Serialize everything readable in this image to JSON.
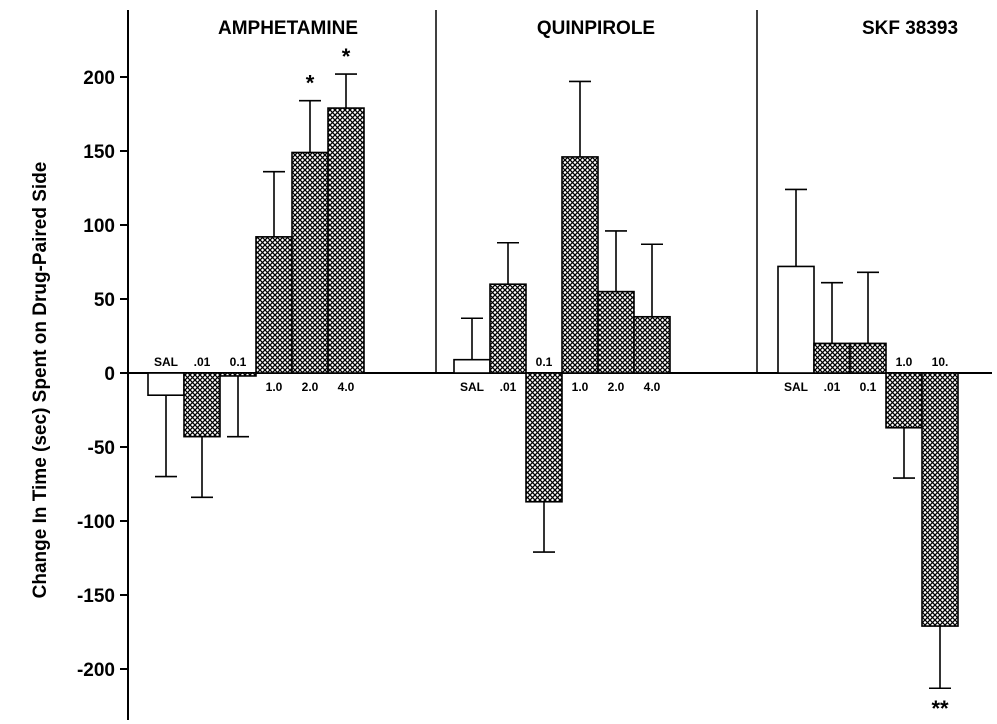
{
  "chart_data": {
    "type": "bar",
    "ylabel": "Change In Time (sec) Spent on Drug-Paired Side",
    "ylim": [
      -250,
      240
    ],
    "yticks": [
      200,
      150,
      100,
      50,
      0,
      -50,
      -100,
      -150,
      -200
    ],
    "ytick_labels": [
      "200",
      "150",
      "100",
      "50",
      "0",
      "-50",
      "-100",
      "-150",
      "-200"
    ],
    "grid": false,
    "legend": "none",
    "colors": {
      "saline": "#ffffff",
      "drug": "#8c8c8c",
      "ink": "#000000"
    },
    "panels": [
      {
        "title": "AMPHETAMINE",
        "categories": [
          "SAL",
          ".01",
          "0.1",
          "1.0",
          "2.0",
          "4.0"
        ],
        "values": [
          -15,
          -43,
          -2,
          92,
          149,
          179
        ],
        "errors": [
          55,
          41,
          41,
          44,
          35,
          23
        ],
        "significance": [
          "",
          "",
          "",
          "",
          "*",
          "*"
        ]
      },
      {
        "title": "QUINPIROLE",
        "categories": [
          "SAL",
          ".01",
          "0.1",
          "1.0",
          "2.0",
          "4.0"
        ],
        "values": [
          9,
          60,
          -87,
          146,
          55,
          38
        ],
        "errors": [
          28,
          28,
          34,
          51,
          41,
          49
        ],
        "significance": [
          "",
          "",
          "",
          "",
          "",
          ""
        ]
      },
      {
        "title": "SKF 38393",
        "categories": [
          "SAL",
          ".01",
          "0.1",
          "1.0",
          "10."
        ],
        "values": [
          72,
          20,
          20,
          -37,
          -171
        ],
        "errors": [
          52,
          41,
          48,
          34,
          42
        ],
        "significance": [
          "",
          "",
          "",
          "",
          "**"
        ]
      }
    ]
  }
}
